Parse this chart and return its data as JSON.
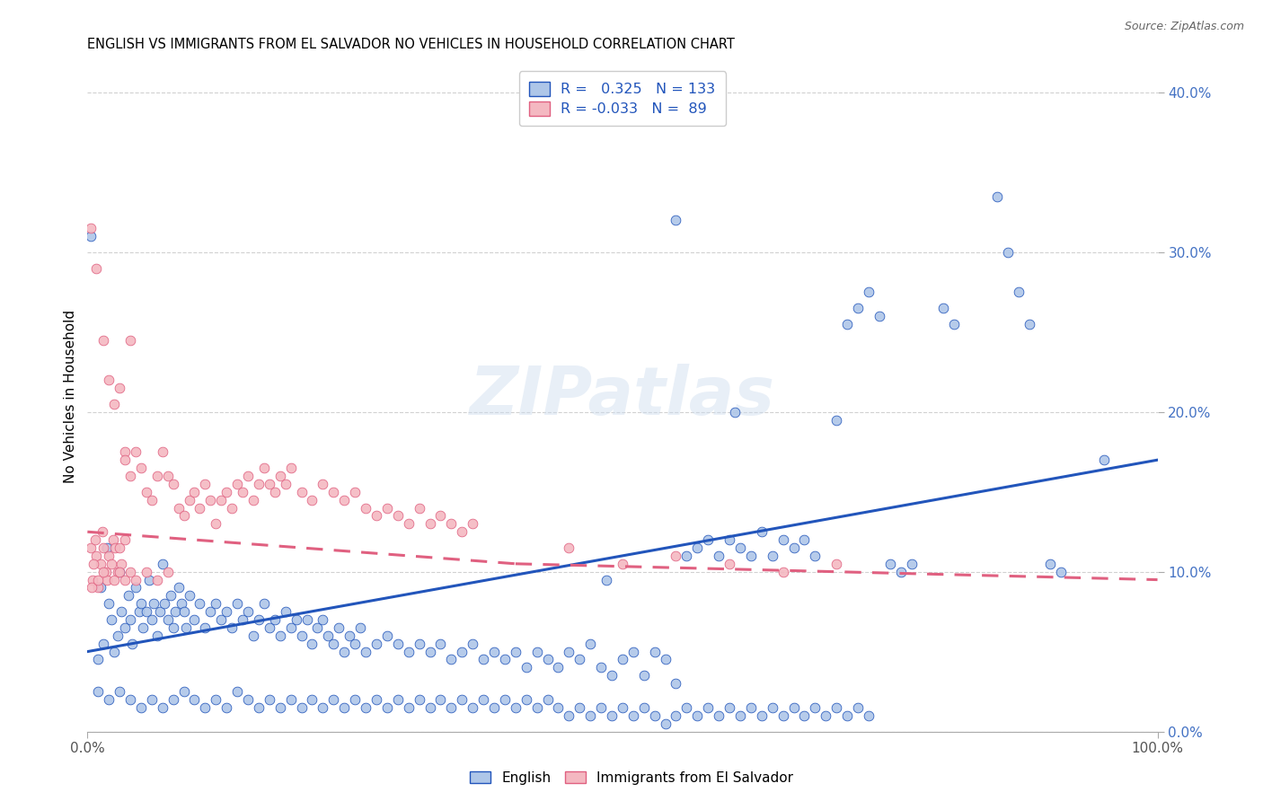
{
  "title": "ENGLISH VS IMMIGRANTS FROM EL SALVADOR NO VEHICLES IN HOUSEHOLD CORRELATION CHART",
  "source": "Source: ZipAtlas.com",
  "ylabel": "No Vehicles in Household",
  "xlim": [
    0.0,
    100.0
  ],
  "ylim": [
    0.0,
    42.0
  ],
  "yticks": [
    0,
    10,
    20,
    30,
    40
  ],
  "ytick_labels": [
    "0.0%",
    "10.0%",
    "20.0%",
    "30.0%",
    "40.0%"
  ],
  "watermark": "ZIPatlas",
  "english_color": "#aec6e8",
  "salvador_color": "#f4b8c1",
  "english_line_color": "#2255bb",
  "salvador_line_color": "#e06080",
  "english_scatter": [
    [
      0.3,
      31.0
    ],
    [
      1.0,
      4.5
    ],
    [
      1.2,
      9.0
    ],
    [
      1.5,
      5.5
    ],
    [
      1.8,
      11.5
    ],
    [
      2.0,
      8.0
    ],
    [
      2.2,
      7.0
    ],
    [
      2.5,
      5.0
    ],
    [
      2.8,
      6.0
    ],
    [
      3.0,
      10.0
    ],
    [
      3.2,
      7.5
    ],
    [
      3.5,
      6.5
    ],
    [
      3.8,
      8.5
    ],
    [
      4.0,
      7.0
    ],
    [
      4.2,
      5.5
    ],
    [
      4.5,
      9.0
    ],
    [
      4.8,
      7.5
    ],
    [
      5.0,
      8.0
    ],
    [
      5.2,
      6.5
    ],
    [
      5.5,
      7.5
    ],
    [
      5.8,
      9.5
    ],
    [
      6.0,
      7.0
    ],
    [
      6.2,
      8.0
    ],
    [
      6.5,
      6.0
    ],
    [
      6.8,
      7.5
    ],
    [
      7.0,
      10.5
    ],
    [
      7.2,
      8.0
    ],
    [
      7.5,
      7.0
    ],
    [
      7.8,
      8.5
    ],
    [
      8.0,
      6.5
    ],
    [
      8.2,
      7.5
    ],
    [
      8.5,
      9.0
    ],
    [
      8.8,
      8.0
    ],
    [
      9.0,
      7.5
    ],
    [
      9.2,
      6.5
    ],
    [
      9.5,
      8.5
    ],
    [
      10.0,
      7.0
    ],
    [
      10.5,
      8.0
    ],
    [
      11.0,
      6.5
    ],
    [
      11.5,
      7.5
    ],
    [
      12.0,
      8.0
    ],
    [
      12.5,
      7.0
    ],
    [
      13.0,
      7.5
    ],
    [
      13.5,
      6.5
    ],
    [
      14.0,
      8.0
    ],
    [
      14.5,
      7.0
    ],
    [
      15.0,
      7.5
    ],
    [
      15.5,
      6.0
    ],
    [
      16.0,
      7.0
    ],
    [
      16.5,
      8.0
    ],
    [
      17.0,
      6.5
    ],
    [
      17.5,
      7.0
    ],
    [
      18.0,
      6.0
    ],
    [
      18.5,
      7.5
    ],
    [
      19.0,
      6.5
    ],
    [
      19.5,
      7.0
    ],
    [
      20.0,
      6.0
    ],
    [
      20.5,
      7.0
    ],
    [
      21.0,
      5.5
    ],
    [
      21.5,
      6.5
    ],
    [
      22.0,
      7.0
    ],
    [
      22.5,
      6.0
    ],
    [
      23.0,
      5.5
    ],
    [
      23.5,
      6.5
    ],
    [
      24.0,
      5.0
    ],
    [
      24.5,
      6.0
    ],
    [
      25.0,
      5.5
    ],
    [
      25.5,
      6.5
    ],
    [
      26.0,
      5.0
    ],
    [
      27.0,
      5.5
    ],
    [
      28.0,
      6.0
    ],
    [
      29.0,
      5.5
    ],
    [
      30.0,
      5.0
    ],
    [
      31.0,
      5.5
    ],
    [
      32.0,
      5.0
    ],
    [
      33.0,
      5.5
    ],
    [
      34.0,
      4.5
    ],
    [
      35.0,
      5.0
    ],
    [
      36.0,
      5.5
    ],
    [
      37.0,
      4.5
    ],
    [
      38.0,
      5.0
    ],
    [
      39.0,
      4.5
    ],
    [
      40.0,
      5.0
    ],
    [
      41.0,
      4.0
    ],
    [
      42.0,
      5.0
    ],
    [
      43.0,
      4.5
    ],
    [
      44.0,
      4.0
    ],
    [
      45.0,
      5.0
    ],
    [
      46.0,
      4.5
    ],
    [
      47.0,
      5.5
    ],
    [
      48.0,
      4.0
    ],
    [
      48.5,
      9.5
    ],
    [
      49.0,
      3.5
    ],
    [
      50.0,
      4.5
    ],
    [
      51.0,
      5.0
    ],
    [
      52.0,
      3.5
    ],
    [
      53.0,
      5.0
    ],
    [
      54.0,
      4.5
    ],
    [
      55.0,
      3.0
    ],
    [
      56.0,
      11.0
    ],
    [
      57.0,
      11.5
    ],
    [
      58.0,
      12.0
    ],
    [
      59.0,
      11.0
    ],
    [
      60.0,
      12.0
    ],
    [
      60.5,
      20.0
    ],
    [
      61.0,
      11.5
    ],
    [
      62.0,
      11.0
    ],
    [
      63.0,
      12.5
    ],
    [
      64.0,
      11.0
    ],
    [
      65.0,
      12.0
    ],
    [
      66.0,
      11.5
    ],
    [
      67.0,
      12.0
    ],
    [
      68.0,
      11.0
    ],
    [
      55.0,
      32.0
    ],
    [
      70.0,
      19.5
    ],
    [
      71.0,
      25.5
    ],
    [
      72.0,
      26.5
    ],
    [
      73.0,
      27.5
    ],
    [
      74.0,
      26.0
    ],
    [
      75.0,
      10.5
    ],
    [
      76.0,
      10.0
    ],
    [
      77.0,
      10.5
    ],
    [
      80.0,
      26.5
    ],
    [
      81.0,
      25.5
    ],
    [
      85.0,
      33.5
    ],
    [
      86.0,
      30.0
    ],
    [
      87.0,
      27.5
    ],
    [
      88.0,
      25.5
    ],
    [
      90.0,
      10.5
    ],
    [
      91.0,
      10.0
    ],
    [
      95.0,
      17.0
    ],
    [
      1.0,
      2.5
    ],
    [
      2.0,
      2.0
    ],
    [
      3.0,
      2.5
    ],
    [
      4.0,
      2.0
    ],
    [
      5.0,
      1.5
    ],
    [
      6.0,
      2.0
    ],
    [
      7.0,
      1.5
    ],
    [
      8.0,
      2.0
    ],
    [
      9.0,
      2.5
    ],
    [
      10.0,
      2.0
    ],
    [
      11.0,
      1.5
    ],
    [
      12.0,
      2.0
    ],
    [
      13.0,
      1.5
    ],
    [
      14.0,
      2.5
    ],
    [
      15.0,
      2.0
    ],
    [
      16.0,
      1.5
    ],
    [
      17.0,
      2.0
    ],
    [
      18.0,
      1.5
    ],
    [
      19.0,
      2.0
    ],
    [
      20.0,
      1.5
    ],
    [
      21.0,
      2.0
    ],
    [
      22.0,
      1.5
    ],
    [
      23.0,
      2.0
    ],
    [
      24.0,
      1.5
    ],
    [
      25.0,
      2.0
    ],
    [
      26.0,
      1.5
    ],
    [
      27.0,
      2.0
    ],
    [
      28.0,
      1.5
    ],
    [
      29.0,
      2.0
    ],
    [
      30.0,
      1.5
    ],
    [
      31.0,
      2.0
    ],
    [
      32.0,
      1.5
    ],
    [
      33.0,
      2.0
    ],
    [
      34.0,
      1.5
    ],
    [
      35.0,
      2.0
    ],
    [
      36.0,
      1.5
    ],
    [
      37.0,
      2.0
    ],
    [
      38.0,
      1.5
    ],
    [
      39.0,
      2.0
    ],
    [
      40.0,
      1.5
    ],
    [
      41.0,
      2.0
    ],
    [
      42.0,
      1.5
    ],
    [
      43.0,
      2.0
    ],
    [
      44.0,
      1.5
    ],
    [
      45.0,
      1.0
    ],
    [
      46.0,
      1.5
    ],
    [
      47.0,
      1.0
    ],
    [
      48.0,
      1.5
    ],
    [
      49.0,
      1.0
    ],
    [
      50.0,
      1.5
    ],
    [
      51.0,
      1.0
    ],
    [
      52.0,
      1.5
    ],
    [
      53.0,
      1.0
    ],
    [
      54.0,
      0.5
    ],
    [
      55.0,
      1.0
    ],
    [
      56.0,
      1.5
    ],
    [
      57.0,
      1.0
    ],
    [
      58.0,
      1.5
    ],
    [
      59.0,
      1.0
    ],
    [
      60.0,
      1.5
    ],
    [
      61.0,
      1.0
    ],
    [
      62.0,
      1.5
    ],
    [
      63.0,
      1.0
    ],
    [
      64.0,
      1.5
    ],
    [
      65.0,
      1.0
    ],
    [
      66.0,
      1.5
    ],
    [
      67.0,
      1.0
    ],
    [
      68.0,
      1.5
    ],
    [
      69.0,
      1.0
    ],
    [
      70.0,
      1.5
    ],
    [
      71.0,
      1.0
    ],
    [
      72.0,
      1.5
    ],
    [
      73.0,
      1.0
    ]
  ],
  "salvador_scatter": [
    [
      0.3,
      11.5
    ],
    [
      0.5,
      9.5
    ],
    [
      0.7,
      12.0
    ],
    [
      0.8,
      11.0
    ],
    [
      1.0,
      9.0
    ],
    [
      1.2,
      10.5
    ],
    [
      1.4,
      12.5
    ],
    [
      1.5,
      11.5
    ],
    [
      1.7,
      10.0
    ],
    [
      1.8,
      9.5
    ],
    [
      2.0,
      11.0
    ],
    [
      2.2,
      10.5
    ],
    [
      2.4,
      12.0
    ],
    [
      2.6,
      11.5
    ],
    [
      2.8,
      10.0
    ],
    [
      3.0,
      11.5
    ],
    [
      3.2,
      10.5
    ],
    [
      3.5,
      12.0
    ],
    [
      0.4,
      9.0
    ],
    [
      0.6,
      10.5
    ],
    [
      0.3,
      31.5
    ],
    [
      1.5,
      24.5
    ],
    [
      2.0,
      22.0
    ],
    [
      2.5,
      20.5
    ],
    [
      3.0,
      21.5
    ],
    [
      3.5,
      17.5
    ],
    [
      4.0,
      24.5
    ],
    [
      0.8,
      29.0
    ],
    [
      3.5,
      17.0
    ],
    [
      4.0,
      16.0
    ],
    [
      4.5,
      17.5
    ],
    [
      5.0,
      16.5
    ],
    [
      5.5,
      15.0
    ],
    [
      6.0,
      14.5
    ],
    [
      6.5,
      16.0
    ],
    [
      7.0,
      17.5
    ],
    [
      7.5,
      16.0
    ],
    [
      8.0,
      15.5
    ],
    [
      8.5,
      14.0
    ],
    [
      9.0,
      13.5
    ],
    [
      9.5,
      14.5
    ],
    [
      10.0,
      15.0
    ],
    [
      10.5,
      14.0
    ],
    [
      11.0,
      15.5
    ],
    [
      11.5,
      14.5
    ],
    [
      12.0,
      13.0
    ],
    [
      12.5,
      14.5
    ],
    [
      13.0,
      15.0
    ],
    [
      13.5,
      14.0
    ],
    [
      14.0,
      15.5
    ],
    [
      14.5,
      15.0
    ],
    [
      15.0,
      16.0
    ],
    [
      15.5,
      14.5
    ],
    [
      16.0,
      15.5
    ],
    [
      16.5,
      16.5
    ],
    [
      17.0,
      15.5
    ],
    [
      17.5,
      15.0
    ],
    [
      18.0,
      16.0
    ],
    [
      18.5,
      15.5
    ],
    [
      19.0,
      16.5
    ],
    [
      20.0,
      15.0
    ],
    [
      21.0,
      14.5
    ],
    [
      22.0,
      15.5
    ],
    [
      23.0,
      15.0
    ],
    [
      24.0,
      14.5
    ],
    [
      25.0,
      15.0
    ],
    [
      26.0,
      14.0
    ],
    [
      27.0,
      13.5
    ],
    [
      28.0,
      14.0
    ],
    [
      29.0,
      13.5
    ],
    [
      30.0,
      13.0
    ],
    [
      31.0,
      14.0
    ],
    [
      32.0,
      13.0
    ],
    [
      33.0,
      13.5
    ],
    [
      34.0,
      13.0
    ],
    [
      35.0,
      12.5
    ],
    [
      36.0,
      13.0
    ],
    [
      1.0,
      9.5
    ],
    [
      1.5,
      10.0
    ],
    [
      2.5,
      9.5
    ],
    [
      3.0,
      10.0
    ],
    [
      3.5,
      9.5
    ],
    [
      4.0,
      10.0
    ],
    [
      4.5,
      9.5
    ],
    [
      5.5,
      10.0
    ],
    [
      6.5,
      9.5
    ],
    [
      7.5,
      10.0
    ],
    [
      45.0,
      11.5
    ],
    [
      50.0,
      10.5
    ],
    [
      55.0,
      11.0
    ],
    [
      60.0,
      10.5
    ],
    [
      65.0,
      10.0
    ],
    [
      70.0,
      10.5
    ]
  ]
}
